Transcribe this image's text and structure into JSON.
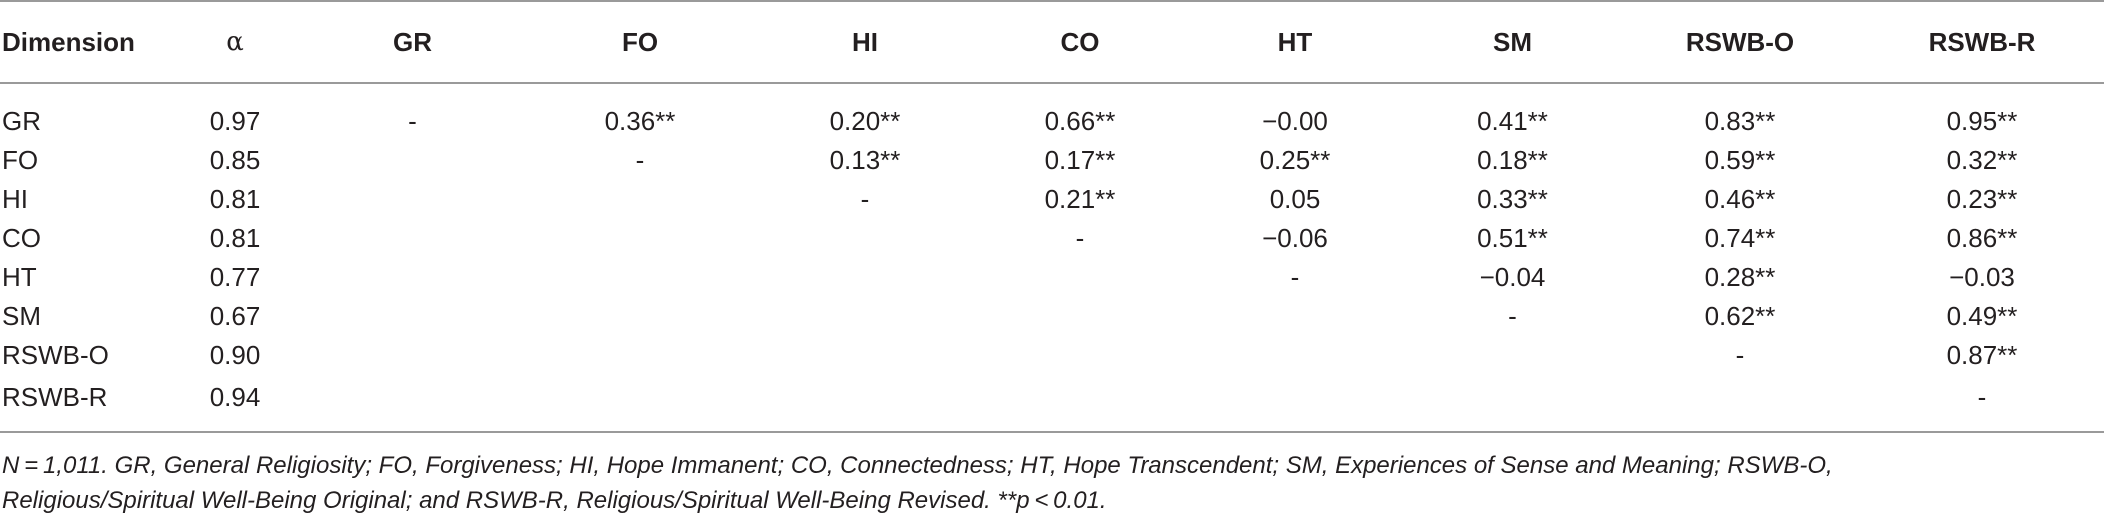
{
  "table": {
    "headers": [
      "Dimension",
      "α",
      "GR",
      "FO",
      "HI",
      "CO",
      "HT",
      "SM",
      "RSWB-O",
      "RSWB-R"
    ],
    "rows": [
      [
        "GR",
        "0.97",
        "-",
        "0.36**",
        "0.20**",
        "0.66**",
        "−0.00",
        "0.41**",
        "0.83**",
        "0.95**"
      ],
      [
        "FO",
        "0.85",
        "",
        "-",
        "0.13**",
        "0.17**",
        "0.25**",
        "0.18**",
        "0.59**",
        "0.32**"
      ],
      [
        "HI",
        "0.81",
        "",
        "",
        "-",
        "0.21**",
        "0.05",
        "0.33**",
        "0.46**",
        "0.23**"
      ],
      [
        "CO",
        "0.81",
        "",
        "",
        "",
        "-",
        "−0.06",
        "0.51**",
        "0.74**",
        "0.86**"
      ],
      [
        "HT",
        "0.77",
        "",
        "",
        "",
        "",
        "-",
        "−0.04",
        "0.28**",
        "−0.03"
      ],
      [
        "SM",
        "0.67",
        "",
        "",
        "",
        "",
        "",
        "-",
        "0.62**",
        "0.49**"
      ],
      [
        "RSWB-O",
        "0.90",
        "",
        "",
        "",
        "",
        "",
        "",
        "-",
        "0.87**"
      ],
      [
        "RSWB-R",
        "0.94",
        "",
        "",
        "",
        "",
        "",
        "",
        "",
        "-"
      ]
    ]
  },
  "note": {
    "line1": "N = 1,011. GR, General Religiosity; FO, Forgiveness; HI, Hope Immanent; CO, Connectedness; HT, Hope Transcendent; SM, Experiences of Sense and Meaning; RSWB-O,",
    "line2": "Religious/Spiritual Well-Being Original; and RSWB-R, Religious/Spiritual Well-Being Revised. **p < 0.01."
  }
}
